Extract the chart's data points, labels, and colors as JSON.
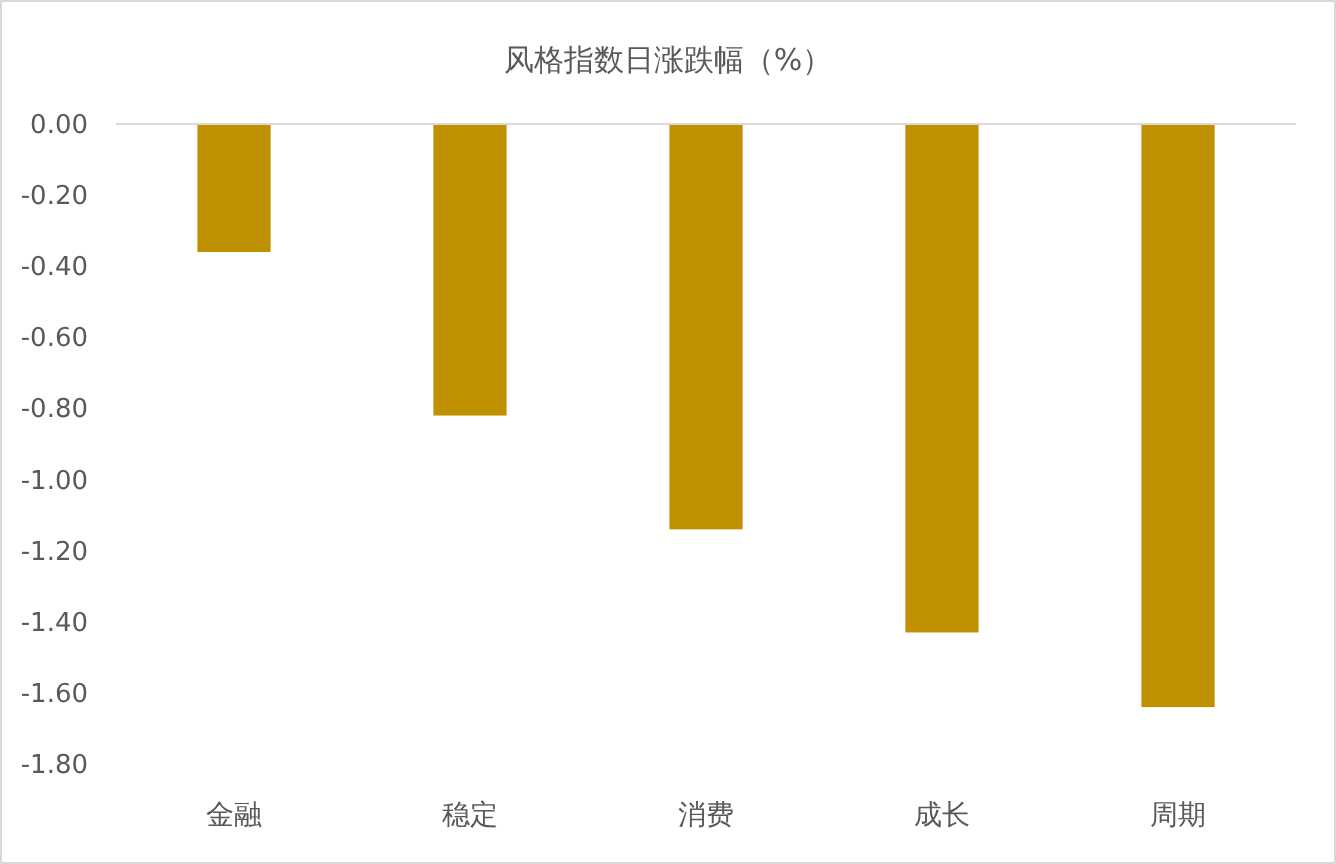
{
  "chart_data": {
    "type": "bar",
    "title": "风格指数日涨跌幅（%）",
    "categories": [
      "金融",
      "稳定",
      "消费",
      "成长",
      "周期"
    ],
    "values": [
      -0.36,
      -0.82,
      -1.14,
      -1.43,
      -1.64
    ],
    "color": "#bf9000",
    "ylim": [
      -1.8,
      0
    ],
    "yticks": [
      {
        "value": 0,
        "label": "0.00"
      },
      {
        "value": -0.2,
        "label": "-0.20"
      },
      {
        "value": -0.4,
        "label": "-0.40"
      },
      {
        "value": -0.6,
        "label": "-0.60"
      },
      {
        "value": -0.8,
        "label": "-0.80"
      },
      {
        "value": -1.0,
        "label": "-1.00"
      },
      {
        "value": -1.2,
        "label": "-1.20"
      },
      {
        "value": -1.4,
        "label": "-1.40"
      },
      {
        "value": -1.6,
        "label": "-1.60"
      },
      {
        "value": -1.8,
        "label": "-1.80"
      }
    ]
  }
}
